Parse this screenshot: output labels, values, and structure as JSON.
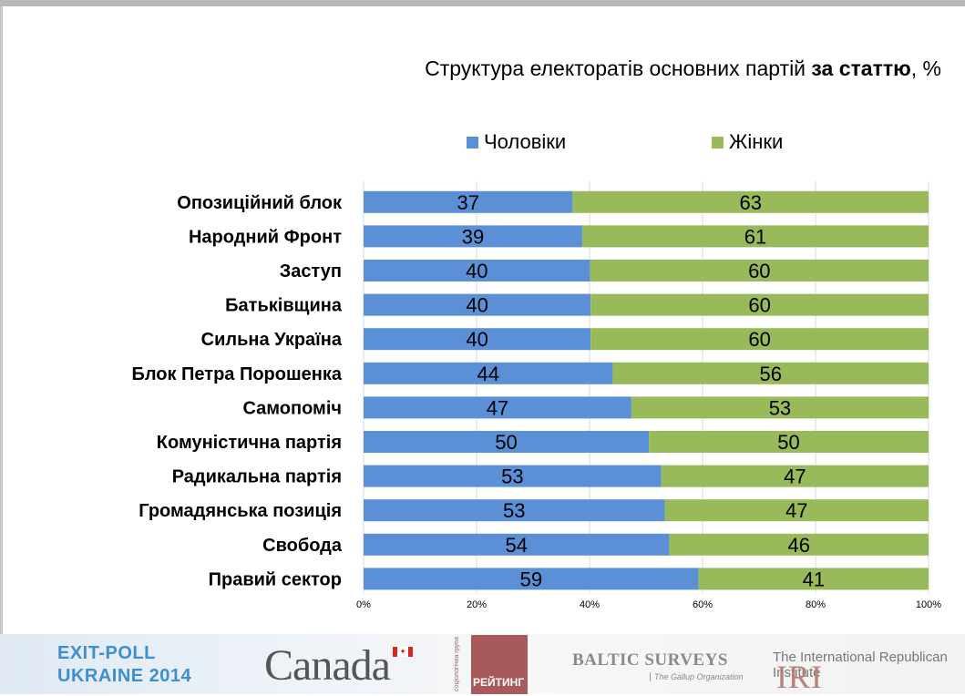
{
  "title": {
    "prefix": "Структура електоратів основних партій ",
    "bold": "за статтю",
    "suffix": ", %"
  },
  "colors": {
    "men": "#5b8fd6",
    "women": "#99ba5a",
    "grid": "#d9d9d9"
  },
  "chart_data": {
    "type": "bar",
    "orientation": "horizontal",
    "stacked": true,
    "title": "Структура електоратів основних партій за статтю, %",
    "categories": [
      "Опозиційний блок",
      "Народний Фронт",
      "Заступ",
      "Батьківщина",
      "Сильна Україна",
      "Блок Петра Порошенка",
      "Самопоміч",
      "Комуністична партія",
      "Радикальна партія",
      "Громадянська позиція",
      "Свобода",
      "Правий сектор"
    ],
    "series": [
      {
        "name": "Чоловіки",
        "values": [
          37,
          39,
          40,
          40,
          40,
          44,
          47,
          50,
          53,
          53,
          54,
          59
        ],
        "plot_values": [
          37,
          38.7,
          40.1,
          40.2,
          40.2,
          44.1,
          47.4,
          50.5,
          52.7,
          53.3,
          54.1,
          59.3
        ]
      },
      {
        "name": "Жінки",
        "values": [
          63,
          61,
          60,
          60,
          60,
          56,
          53,
          50,
          47,
          47,
          46,
          41
        ]
      }
    ],
    "xlim": [
      0,
      100
    ],
    "xticks": [
      "0%",
      "20%",
      "40%",
      "60%",
      "80%",
      "100%"
    ],
    "legend": "top"
  },
  "footer": {
    "exit_poll_line1": "EXIT-POLL",
    "exit_poll_line2": "UKRAINE 2014",
    "canada": "Canada",
    "rating_vertical": "соціологічна група",
    "rating": "РЕЙТИНГ",
    "baltic": "BALTIC SURVEYS",
    "gallup": "The Gallup Organization",
    "iri_name": "The International Republican Institute",
    "iri_abbr": "IRI"
  }
}
